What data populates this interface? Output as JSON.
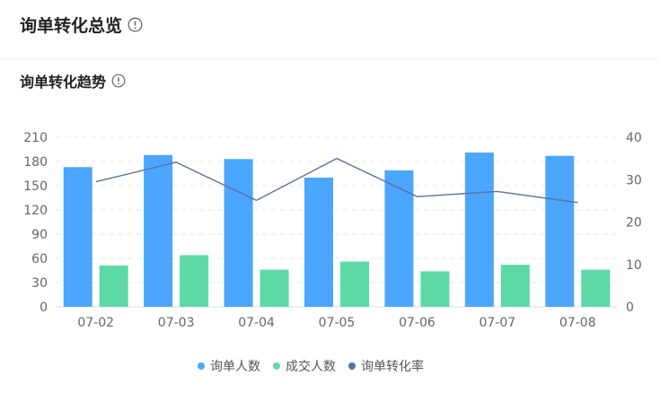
{
  "page": {
    "title": "询单转化总览",
    "subtitle": "询单转化趋势"
  },
  "icons": {
    "title_info": "info-circle-icon",
    "subtitle_info": "info-circle-icon"
  },
  "colors": {
    "inquiries": "#4ba6ff",
    "deals": "#5dd9a5",
    "conversion": "#5a6f9c",
    "grid": "#e8e8e8",
    "axis_text": "#666666"
  },
  "chart_data": {
    "type": "bar",
    "categories": [
      "07-02",
      "07-03",
      "07-04",
      "07-05",
      "07-06",
      "07-07",
      "07-08"
    ],
    "series": [
      {
        "name": "询单人数",
        "type": "bar",
        "axis": "left",
        "values": [
          173,
          188,
          183,
          160,
          169,
          191,
          187
        ]
      },
      {
        "name": "成交人数",
        "type": "bar",
        "axis": "left",
        "values": [
          51,
          64,
          46,
          56,
          44,
          52,
          46
        ]
      },
      {
        "name": "询单转化率",
        "type": "line",
        "axis": "right",
        "values": [
          29.5,
          34.1,
          25.1,
          35.0,
          26.0,
          27.2,
          24.6
        ]
      }
    ],
    "y_left": {
      "ticks": [
        0,
        30,
        60,
        90,
        120,
        150,
        180,
        210
      ],
      "min": 0,
      "max": 210
    },
    "y_right": {
      "ticks": [
        0,
        10,
        20,
        30,
        40
      ],
      "min": 0,
      "max": 40
    },
    "grid": "dashed",
    "legend_position": "bottom-center"
  }
}
